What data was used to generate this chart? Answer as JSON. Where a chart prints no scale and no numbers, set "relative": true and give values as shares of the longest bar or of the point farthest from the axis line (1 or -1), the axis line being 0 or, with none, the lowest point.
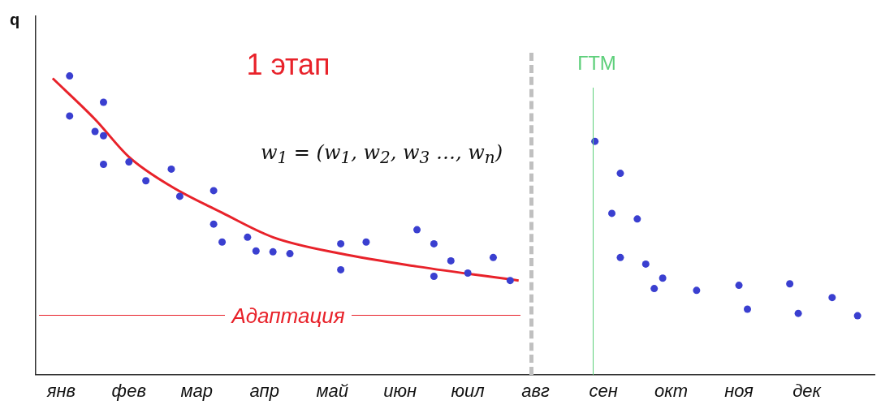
{
  "chart_data": {
    "type": "scatter",
    "relative": true,
    "ylabel": "q",
    "legend": false,
    "grid": false,
    "marker": "circle",
    "categories": [
      null,
      null,
      null,
      "янв",
      null,
      null,
      null,
      null,
      null,
      null,
      null,
      "фев",
      null,
      null,
      null,
      null,
      null,
      null,
      null,
      "мар",
      null,
      null,
      null,
      null,
      null,
      null,
      null,
      "апр",
      null,
      null,
      null,
      null,
      null,
      null,
      null,
      "май",
      null,
      null,
      null,
      null,
      null,
      null,
      null,
      "июн",
      null,
      null,
      null,
      null,
      null,
      null,
      null,
      "юил",
      null,
      null,
      null,
      null,
      null,
      null,
      null,
      "авг",
      null,
      null,
      null,
      null,
      null,
      null,
      null,
      "сен",
      null,
      null,
      null,
      null,
      null,
      null,
      null,
      "окт",
      null,
      null,
      null,
      null,
      null,
      null,
      null,
      "ноя",
      null,
      null,
      null,
      null,
      null,
      null,
      null,
      "дек",
      null,
      null,
      null,
      null,
      null,
      null,
      null,
      null
    ],
    "series": [
      {
        "color": "#3a3fd0",
        "values": [
          null,
          null,
          null,
          null,
          1.0,
          null,
          null,
          0.814,
          0.912,
          null,
          null,
          0.712,
          null,
          0.649,
          null,
          null,
          0.688,
          0.597,
          null,
          null,
          null,
          0.616,
          0.444,
          null,
          null,
          0.46,
          0.414,
          null,
          0.411,
          null,
          0.405,
          null,
          null,
          null,
          null,
          null,
          0.438,
          null,
          null,
          0.444,
          null,
          null,
          null,
          null,
          null,
          0.485,
          null,
          0.438,
          null,
          0.381,
          null,
          0.34,
          null,
          null,
          0.392,
          null,
          0.315,
          null,
          null,
          null,
          null,
          null,
          null,
          null,
          null,
          null,
          0.781,
          null,
          0.54,
          0.674,
          null,
          0.521,
          0.37,
          0.288,
          0.323,
          null,
          null,
          null,
          0.282,
          null,
          null,
          null,
          null,
          0.299,
          0.219,
          null,
          null,
          null,
          null,
          0.304,
          0.205,
          null,
          null,
          null,
          0.258,
          null,
          null,
          0.197,
          null,
          null
        ]
      },
      {
        "color": "#3a3fd0",
        "values": [
          null,
          null,
          null,
          null,
          0.866,
          null,
          null,
          null,
          0.8,
          null,
          null,
          null,
          null,
          null,
          null,
          null,
          null,
          null,
          null,
          null,
          null,
          0.504,
          null,
          null,
          null,
          null,
          null,
          null,
          null,
          null,
          null,
          null,
          null,
          null,
          null,
          null,
          0.351,
          null,
          null,
          null,
          null,
          null,
          null,
          null,
          null,
          null,
          null,
          0.329,
          null,
          null,
          null,
          null,
          null,
          null,
          null,
          null,
          null,
          null,
          null,
          null,
          null,
          null,
          null,
          null,
          null,
          null,
          null,
          null,
          null,
          0.392,
          null,
          null,
          null,
          null,
          null,
          null,
          null,
          null,
          null,
          null,
          null,
          null,
          null,
          null,
          null,
          null,
          null,
          null,
          null,
          null,
          null,
          null,
          null,
          null,
          null,
          null,
          null,
          null,
          null,
          null
        ]
      },
      {
        "color": "#3a3fd0",
        "values": [
          null,
          null,
          null,
          null,
          null,
          null,
          null,
          null,
          0.704,
          null,
          null,
          null,
          null,
          null,
          null,
          null,
          null,
          null,
          null,
          null,
          null,
          null,
          null,
          null,
          null,
          null,
          null,
          null,
          null,
          null,
          null,
          null,
          null,
          null,
          null,
          null,
          null,
          null,
          null,
          null,
          null,
          null,
          null,
          null,
          null,
          null,
          null,
          null,
          null,
          null,
          null,
          null,
          null,
          null,
          null,
          null,
          null,
          null,
          null,
          null,
          null,
          null,
          null,
          null,
          null,
          null,
          null,
          null,
          null,
          null,
          null,
          null,
          null,
          null,
          null,
          null,
          null,
          null,
          null,
          null,
          null,
          null,
          null,
          null,
          null,
          null,
          null,
          null,
          null,
          null,
          null,
          null,
          null,
          null,
          null,
          null,
          null,
          null,
          null,
          null
        ]
      },
      {
        "type": "line",
        "color": "#e8222a",
        "marker": "none",
        "line_style": "solid",
        "values": [
          null,
          null,
          0.992,
          null,
          null,
          null,
          null,
          0.855,
          null,
          null,
          null,
          0.729,
          null,
          null,
          null,
          null,
          0.63,
          null,
          null,
          null,
          null,
          null,
          0.542,
          null,
          null,
          null,
          null,
          null,
          0.46,
          null,
          null,
          null,
          null,
          null,
          null,
          null,
          0.405,
          null,
          null,
          null,
          null,
          null,
          null,
          null,
          null,
          0.362,
          null,
          null,
          null,
          null,
          null,
          null,
          null,
          null,
          null,
          null,
          null,
          0.315,
          null,
          null,
          null,
          null,
          null,
          null,
          null,
          null,
          null,
          null,
          null,
          null,
          null,
          null,
          null,
          null,
          null,
          null,
          null,
          null,
          null,
          null,
          null,
          null,
          null,
          null,
          null,
          null,
          null,
          null,
          null,
          null,
          null,
          null,
          null,
          null,
          null,
          null,
          null,
          null,
          null,
          null
        ]
      }
    ],
    "annotations": [
      "1 этап",
      "w$_{1}$ = (w$_{1}$, w$_{2}$, w$_{3}$ …, w$_{n}$)",
      "Адаптация",
      "ГТМ"
    ]
  }
}
